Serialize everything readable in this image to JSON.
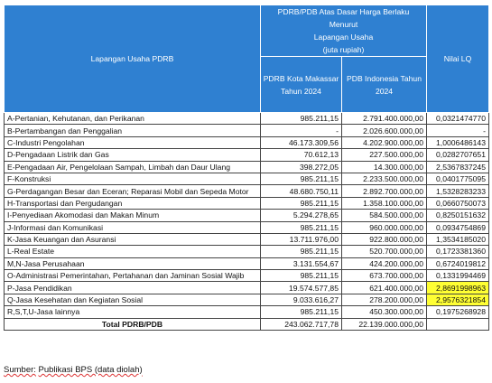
{
  "table": {
    "header": {
      "sector": "Lapangan Usaha PDRB",
      "group": [
        "PDRB/PDB Atas Dasar Harga Berlaku Menurut",
        "Lapangan Usaha",
        "(juta rupiah)"
      ],
      "makassar": [
        "PDRB Kota Makassar",
        "Tahun 2024"
      ],
      "indonesia": [
        "PDB Indonesia Tahun",
        "2024"
      ],
      "lq": "Nilai LQ"
    },
    "rows": [
      [
        "A-Pertanian, Kehutanan, dan Perikanan",
        "985.211,15",
        "2.791.400.000,00",
        "0,0321474770"
      ],
      [
        "B-Pertambangan dan Penggalian",
        "-",
        "2.026.600.000,00",
        "-"
      ],
      [
        "C-Industri Pengolahan",
        "46.173.309,56",
        "4.202.900.000,00",
        "1,0006486143"
      ],
      [
        "D-Pengadaan Listrik dan Gas",
        "70.612,13",
        "227.500.000,00",
        "0,0282707651"
      ],
      [
        "E-Pengadaan Air, Pengelolaan Sampah, Limbah dan Daur Ulang",
        "398.272,05",
        "14.300.000,00",
        "2,5367837245"
      ],
      [
        "F-Konstruksi",
        "985.211,15",
        "2.233.500.000,00",
        "0,0401775095"
      ],
      [
        "G-Perdagangan Besar dan Eceran; Reparasi Mobil dan Sepeda Motor",
        "48.680.750,11",
        "2.892.700.000,00",
        "1,5328283233"
      ],
      [
        "H-Transportasi dan Pergudangan",
        "985.211,15",
        "1.358.100.000,00",
        "0,0660750073"
      ],
      [
        "I-Penyediaan Akomodasi dan Makan Minum",
        "5.294.278,65",
        "584.500.000,00",
        "0,8250151632"
      ],
      [
        "J-Informasi dan Komunikasi",
        "985.211,15",
        "960.000.000,00",
        "0,0934754869"
      ],
      [
        "K-Jasa Keuangan dan Asuransi",
        "13.711.976,00",
        "922.800.000,00",
        "1,3534185020"
      ],
      [
        "L-Real Estate",
        "985.211,15",
        "520.700.000,00",
        "0,1723381360"
      ],
      [
        "M,N-Jasa Perusahaan",
        "3.131.554,67",
        "424.200.000,00",
        "0,6724019812"
      ],
      [
        "O-Administrasi Pemerintahan, Pertahanan dan Jaminan Sosial Wajib",
        "985.211,15",
        "673.700.000,00",
        "0,1331994469"
      ],
      [
        "P-Jasa Pendidikan",
        "19.574.577,85",
        "621.400.000,00",
        "2,8691998963"
      ],
      [
        "Q-Jasa Kesehatan dan Kegiatan Sosial",
        "9.033.616,27",
        "278.200.000,00",
        "2,9576321854"
      ],
      [
        "R,S,T,U-Jasa lainnya",
        "985.211,15",
        "450.300.000,00",
        "0,1975268928"
      ]
    ],
    "highlighted_rows": [
      14,
      15
    ],
    "total": [
      "Total PDRB/PDB",
      "243.062.717,78",
      "22.139.000.000,00"
    ]
  },
  "source": {
    "label": "Sumber:",
    "text": "Publikasi BPS (data diolah)"
  }
}
